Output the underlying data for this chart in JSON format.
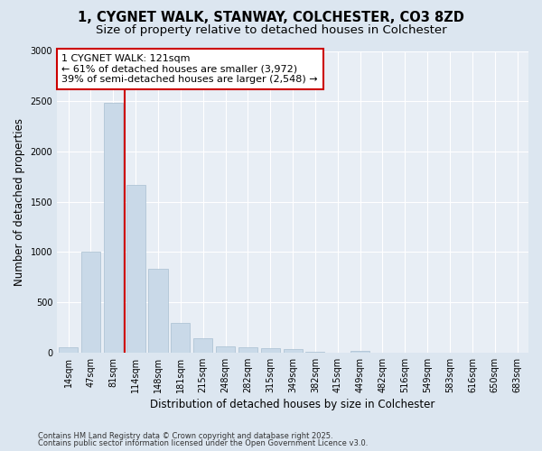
{
  "title_line1": "1, CYGNET WALK, STANWAY, COLCHESTER, CO3 8ZD",
  "title_line2": "Size of property relative to detached houses in Colchester",
  "xlabel": "Distribution of detached houses by size in Colchester",
  "ylabel": "Number of detached properties",
  "categories": [
    "14sqm",
    "47sqm",
    "81sqm",
    "114sqm",
    "148sqm",
    "181sqm",
    "215sqm",
    "248sqm",
    "282sqm",
    "315sqm",
    "349sqm",
    "382sqm",
    "415sqm",
    "449sqm",
    "482sqm",
    "516sqm",
    "549sqm",
    "583sqm",
    "616sqm",
    "650sqm",
    "683sqm"
  ],
  "values": [
    55,
    1005,
    2480,
    1670,
    835,
    295,
    140,
    65,
    55,
    40,
    30,
    10,
    0,
    20,
    0,
    0,
    0,
    0,
    0,
    0,
    0
  ],
  "bar_color": "#c9d9e8",
  "bar_edge_color": "#a8bfd0",
  "vline_x": 2.5,
  "vline_color": "#cc0000",
  "annotation_text": "1 CYGNET WALK: 121sqm\n← 61% of detached houses are smaller (3,972)\n39% of semi-detached houses are larger (2,548) →",
  "annotation_box_color": "#ffffff",
  "annotation_border_color": "#cc0000",
  "ylim": [
    0,
    3000
  ],
  "yticks": [
    0,
    500,
    1000,
    1500,
    2000,
    2500,
    3000
  ],
  "bg_color": "#dce6f0",
  "plot_bg_color": "#e8eef5",
  "grid_color": "#ffffff",
  "footer_line1": "Contains HM Land Registry data © Crown copyright and database right 2025.",
  "footer_line2": "Contains public sector information licensed under the Open Government Licence v3.0.",
  "title_fontsize": 10.5,
  "subtitle_fontsize": 9.5,
  "ylabel_fontsize": 8.5,
  "xlabel_fontsize": 8.5,
  "tick_fontsize": 7,
  "annotation_fontsize": 8,
  "footer_fontsize": 6
}
